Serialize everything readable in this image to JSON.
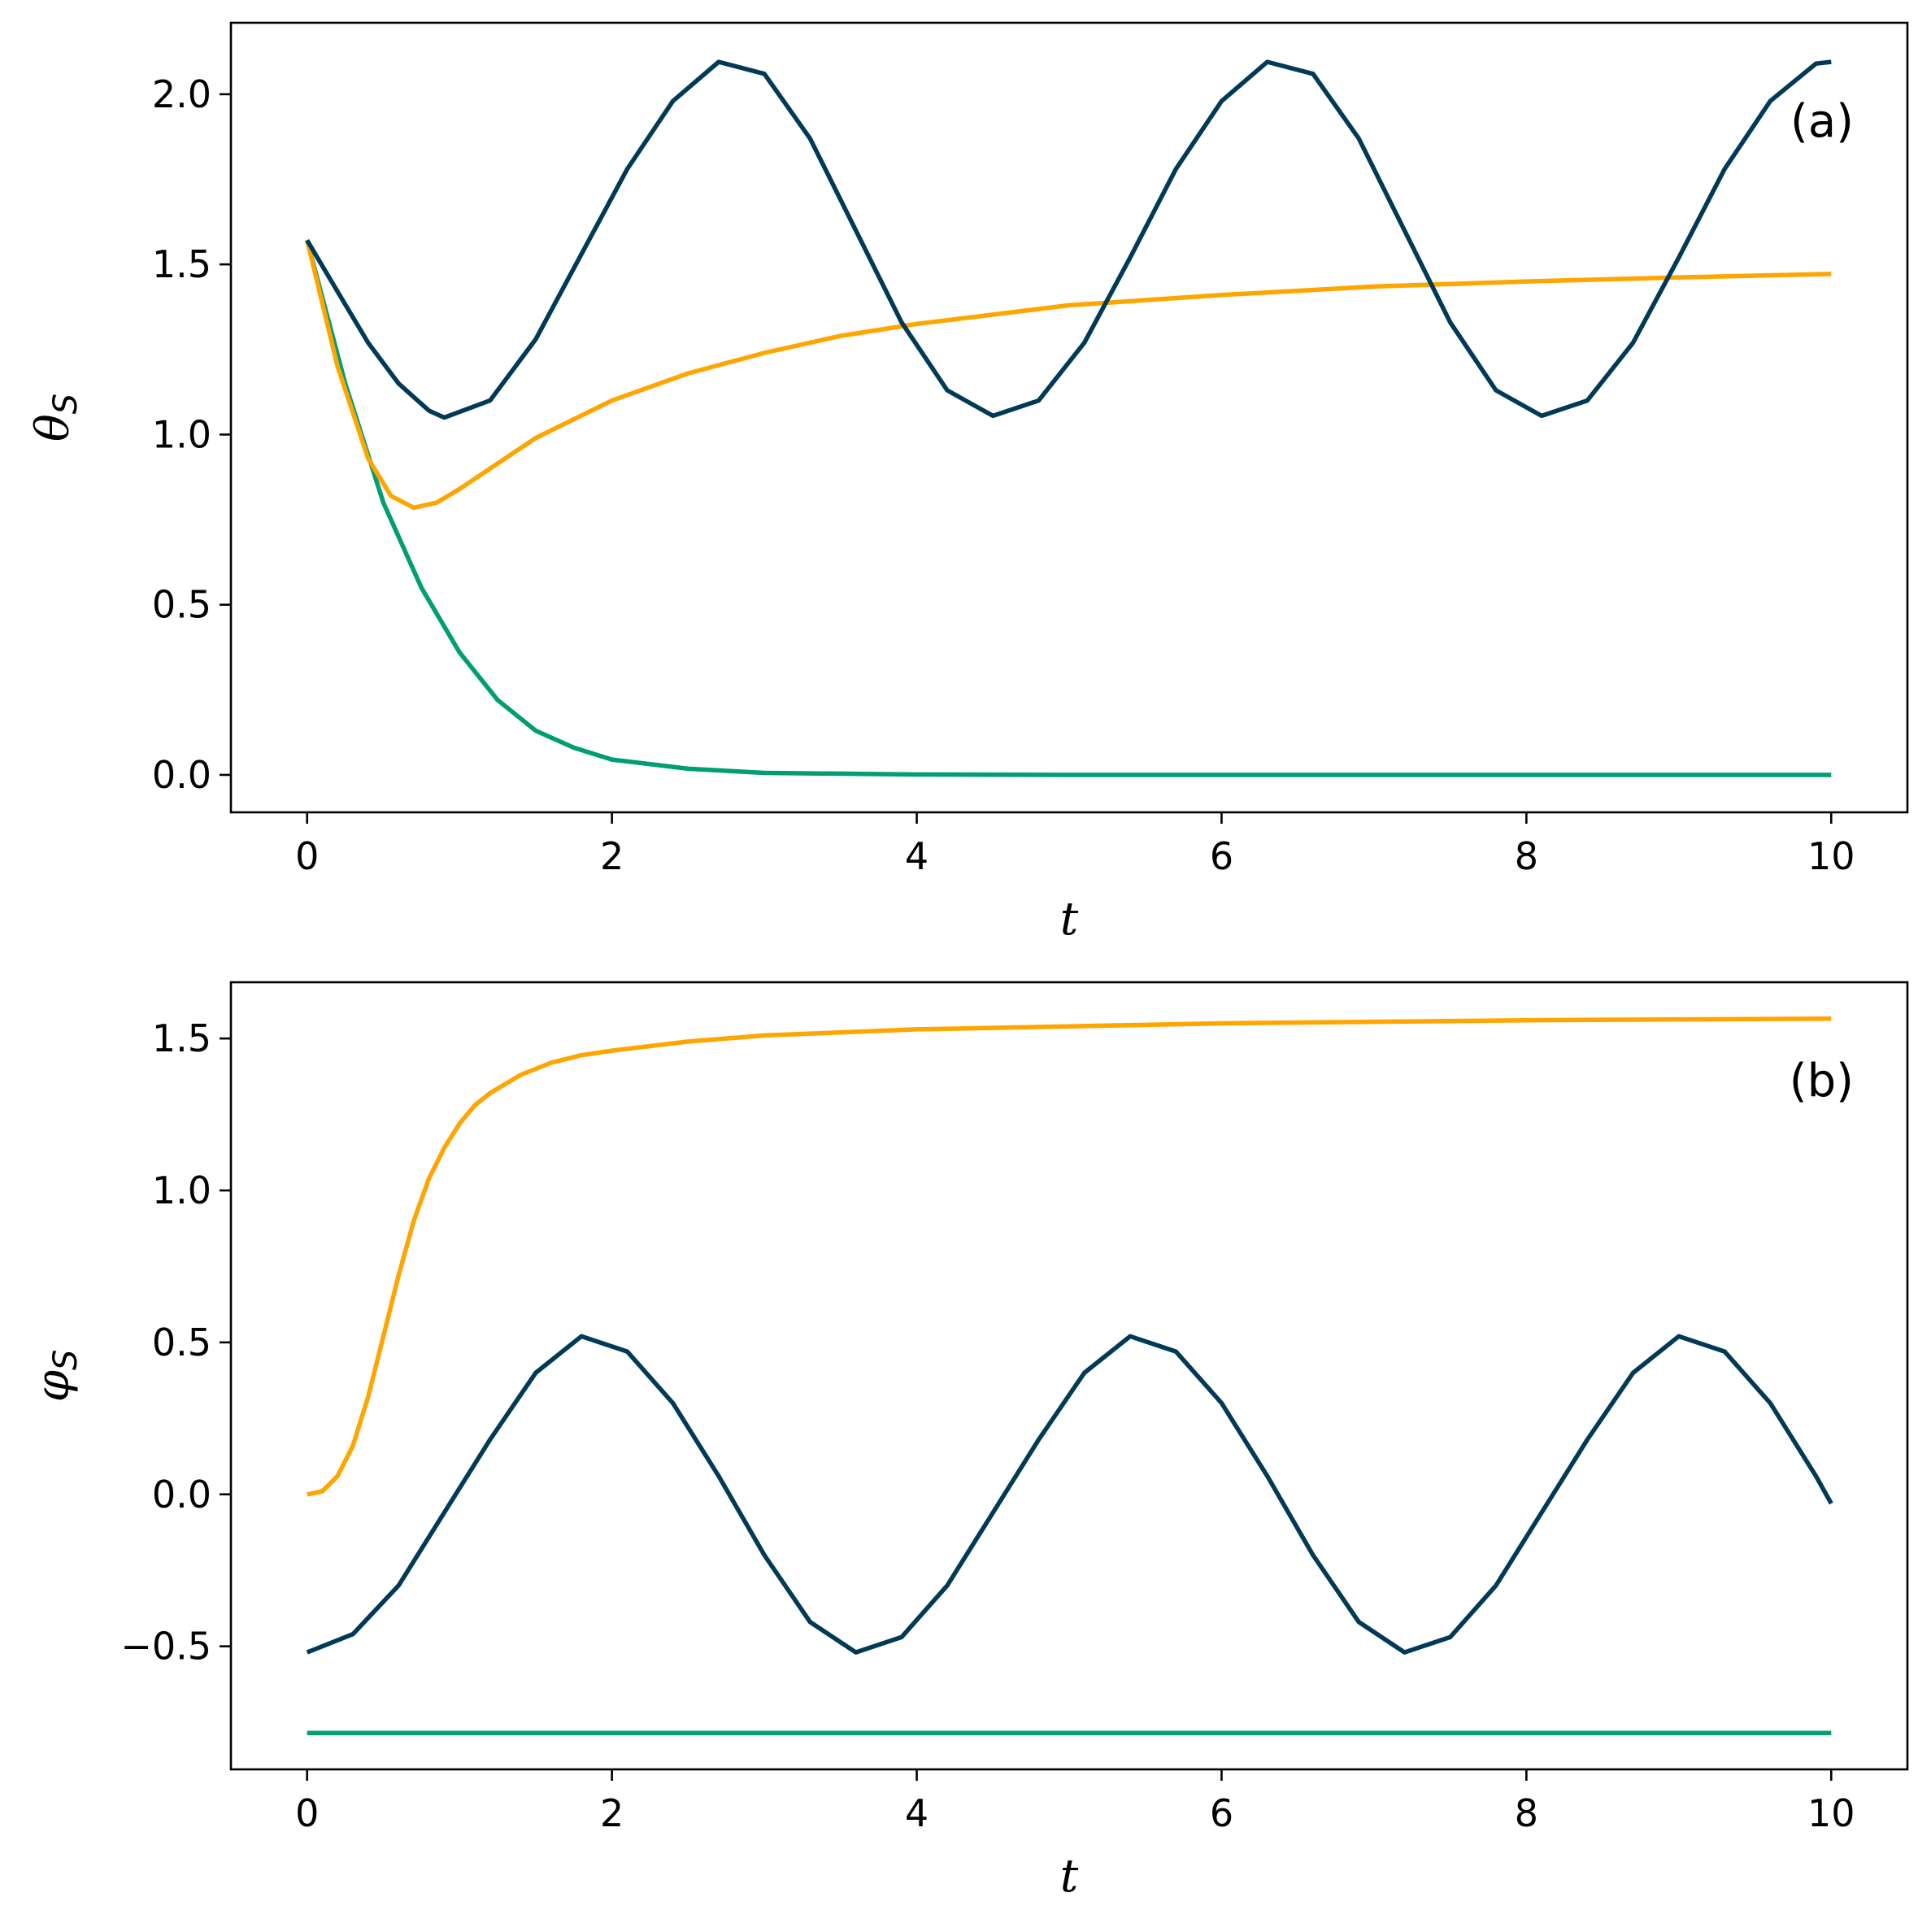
{
  "chart_data": [
    {
      "type": "line",
      "panel_label": "(a)",
      "xlabel": "t",
      "ylabel": "θ",
      "ylabel_sub": "S",
      "xlim": [
        -0.5,
        10.5
      ],
      "ylim": [
        -0.11,
        2.21
      ],
      "xticks": [
        0,
        2,
        4,
        6,
        8,
        10
      ],
      "xtick_labels": [
        "0",
        "2",
        "4",
        "6",
        "8",
        "10"
      ],
      "yticks": [
        0.0,
        0.5,
        1.0,
        1.5,
        2.0
      ],
      "ytick_labels": [
        "0.0",
        "0.5",
        "1.0",
        "1.5",
        "2.0"
      ],
      "grid": false,
      "series": [
        {
          "color": "#009E73",
          "x": [
            0,
            0.25,
            0.5,
            0.75,
            1.0,
            1.25,
            1.5,
            1.75,
            2.0,
            2.5,
            3.0,
            4.0,
            5.0,
            6.0,
            7.0,
            8.0,
            9.0,
            10.0
          ],
          "y": [
            1.571,
            1.15,
            0.8,
            0.55,
            0.36,
            0.22,
            0.13,
            0.08,
            0.045,
            0.018,
            0.006,
            0.001,
            0.0,
            0.0,
            0.0,
            0.0,
            0.0,
            0.0
          ]
        },
        {
          "color": "#FFA500",
          "x": [
            0,
            0.2,
            0.4,
            0.55,
            0.7,
            0.85,
            1.0,
            1.2,
            1.5,
            2.0,
            2.5,
            3.0,
            3.5,
            4.0,
            5.0,
            6.0,
            7.0,
            8.0,
            9.0,
            10.0
          ],
          "y": [
            1.571,
            1.2,
            0.93,
            0.82,
            0.785,
            0.8,
            0.84,
            0.9,
            0.99,
            1.1,
            1.18,
            1.24,
            1.29,
            1.325,
            1.38,
            1.41,
            1.435,
            1.45,
            1.462,
            1.472
          ]
        },
        {
          "color": "#003A57",
          "x": [
            0,
            0.2,
            0.4,
            0.6,
            0.8,
            0.9,
            1.2,
            1.5,
            1.8,
            2.1,
            2.4,
            2.7,
            3.0,
            3.3,
            3.6,
            3.9,
            4.2,
            4.5,
            4.8,
            5.1,
            5.4,
            5.7,
            6.0,
            6.3,
            6.6,
            6.9,
            7.2,
            7.5,
            7.8,
            8.1,
            8.4,
            8.7,
            9.0,
            9.3,
            9.6,
            9.9,
            10.0
          ],
          "y": [
            1.571,
            1.42,
            1.27,
            1.15,
            1.07,
            1.05,
            1.1,
            1.28,
            1.53,
            1.78,
            1.98,
            2.095,
            2.06,
            1.87,
            1.6,
            1.33,
            1.13,
            1.055,
            1.1,
            1.27,
            1.52,
            1.78,
            1.98,
            2.095,
            2.06,
            1.87,
            1.6,
            1.33,
            1.13,
            1.055,
            1.1,
            1.27,
            1.52,
            1.78,
            1.98,
            2.09,
            2.095
          ]
        }
      ]
    },
    {
      "type": "line",
      "panel_label": "(b)",
      "xlabel": "t",
      "ylabel": "φ",
      "ylabel_sub": "S",
      "xlim": [
        -0.5,
        10.5
      ],
      "ylim": [
        -0.905,
        1.685
      ],
      "xticks": [
        0,
        2,
        4,
        6,
        8,
        10
      ],
      "xtick_labels": [
        "0",
        "2",
        "4",
        "6",
        "8",
        "10"
      ],
      "yticks": [
        -0.5,
        0.0,
        0.5,
        1.0,
        1.5
      ],
      "ytick_labels": [
        "−0.5",
        "0.0",
        "0.5",
        "1.0",
        "1.5"
      ],
      "grid": false,
      "series": [
        {
          "color": "#009E73",
          "x": [
            0,
            10
          ],
          "y": [
            -0.785,
            -0.785
          ]
        },
        {
          "color": "#FFA500",
          "x": [
            0,
            0.1,
            0.2,
            0.3,
            0.4,
            0.5,
            0.6,
            0.7,
            0.8,
            0.9,
            1.0,
            1.1,
            1.2,
            1.4,
            1.6,
            1.8,
            2.0,
            2.5,
            3.0,
            4.0,
            5.0,
            6.0,
            8.0,
            10.0
          ],
          "y": [
            0.0,
            0.01,
            0.06,
            0.16,
            0.32,
            0.52,
            0.72,
            0.9,
            1.04,
            1.14,
            1.22,
            1.28,
            1.32,
            1.38,
            1.42,
            1.445,
            1.46,
            1.49,
            1.51,
            1.53,
            1.54,
            1.55,
            1.56,
            1.565
          ]
        },
        {
          "color": "#003A57",
          "x": [
            0,
            0.3,
            0.6,
            0.9,
            1.2,
            1.5,
            1.8,
            2.1,
            2.4,
            2.7,
            3.0,
            3.3,
            3.6,
            3.9,
            4.2,
            4.5,
            4.8,
            5.1,
            5.4,
            5.7,
            6.0,
            6.3,
            6.6,
            6.9,
            7.2,
            7.5,
            7.8,
            8.1,
            8.4,
            8.7,
            9.0,
            9.3,
            9.6,
            9.9,
            10.0
          ],
          "y": [
            -0.52,
            -0.46,
            -0.3,
            -0.06,
            0.18,
            0.4,
            0.52,
            0.47,
            0.3,
            0.06,
            -0.2,
            -0.42,
            -0.52,
            -0.47,
            -0.3,
            -0.06,
            0.18,
            0.4,
            0.52,
            0.47,
            0.3,
            0.06,
            -0.2,
            -0.42,
            -0.52,
            -0.47,
            -0.3,
            -0.06,
            0.18,
            0.4,
            0.52,
            0.47,
            0.3,
            0.06,
            -0.03
          ]
        }
      ]
    }
  ]
}
